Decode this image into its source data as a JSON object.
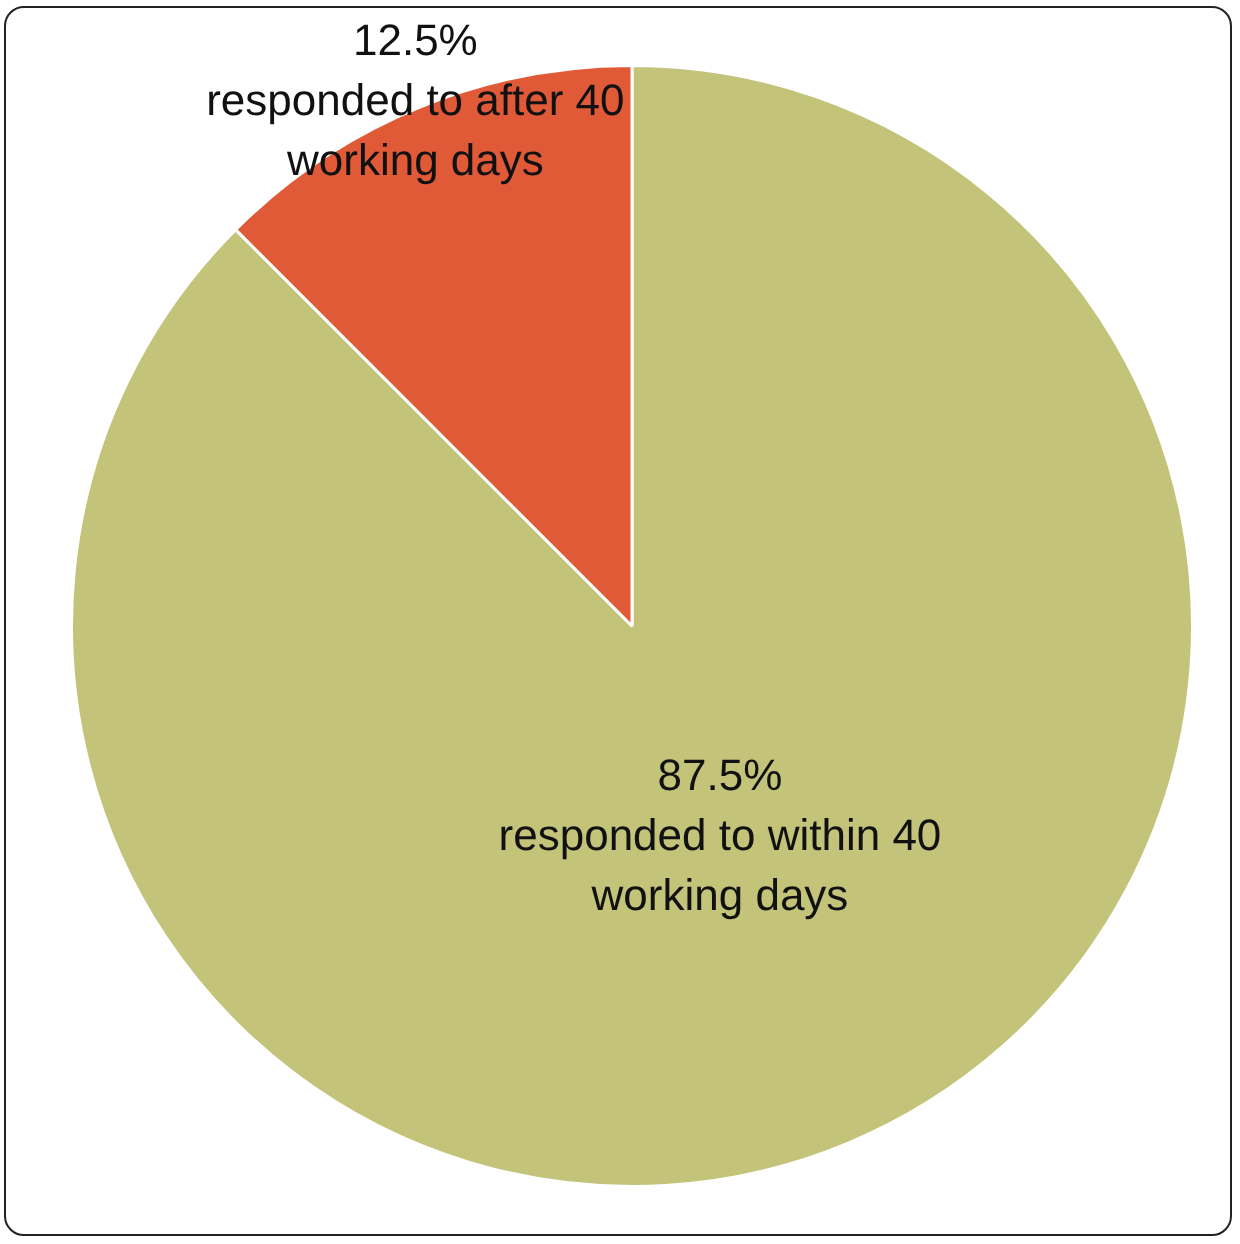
{
  "chart_data": {
    "type": "pie",
    "categories": [
      "responded to within 40 working days",
      "responded to after 40 working days"
    ],
    "values": [
      87.5,
      12.5
    ],
    "colors": [
      "#c3c47a",
      "#e05a38"
    ],
    "value_labels": [
      "87.5%",
      "12.5%"
    ]
  }
}
